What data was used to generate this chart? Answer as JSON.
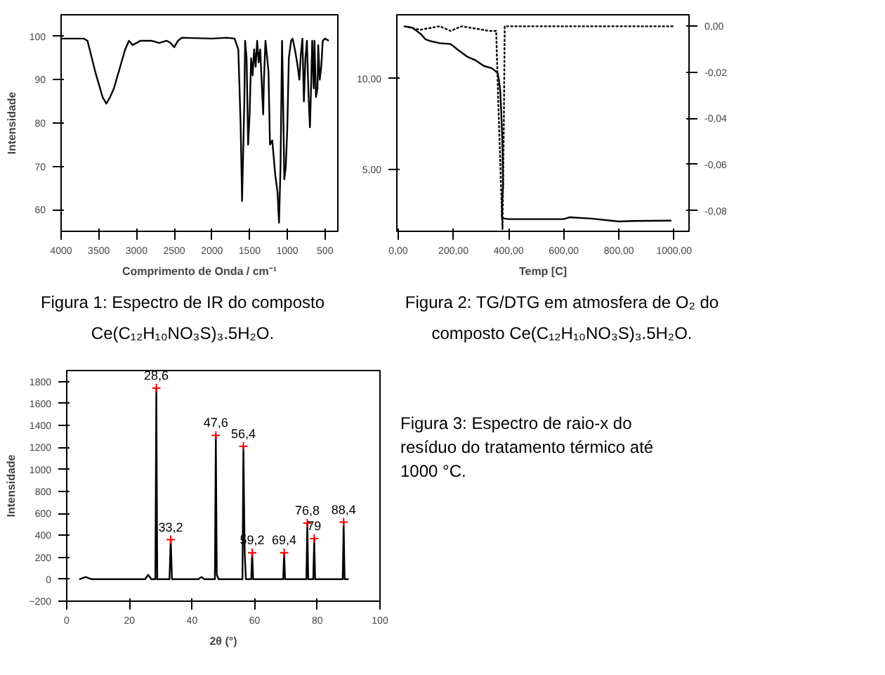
{
  "chart_data": [
    {
      "type": "line",
      "xlabel": "Comprimento de Onda / cm⁻¹",
      "ylabel": "Intensidade",
      "xlim": [
        4000,
        330
      ],
      "ylim": [
        55,
        105
      ],
      "xticks": [
        4000,
        3500,
        3000,
        2500,
        2000,
        1500,
        1000,
        500
      ],
      "yticks": [
        60,
        70,
        80,
        90,
        100
      ],
      "grid": false,
      "annotations": [
        "Figura 1: Espectro de IR do composto Ce(C₁₂H₁₀NO₃S)₃.5H₂O."
      ],
      "series": [
        {
          "color": "#000000",
          "x": [
            4000,
            3700,
            3650,
            3550,
            3450,
            3400,
            3350,
            3300,
            3250,
            3150,
            3100,
            3050,
            2950,
            2800,
            2700,
            2600,
            2550,
            2500,
            2450,
            2400,
            2000,
            1800,
            1700,
            1650,
            1620,
            1600,
            1590,
            1570,
            1560,
            1540,
            1520,
            1500,
            1480,
            1460,
            1440,
            1420,
            1400,
            1380,
            1360,
            1320,
            1310,
            1290,
            1250,
            1230,
            1200,
            1180,
            1160,
            1130,
            1110,
            1090,
            1070,
            1060,
            1040,
            1020,
            1000,
            980,
            950,
            930,
            900,
            870,
            840,
            820,
            800,
            780,
            760,
            740,
            720,
            700,
            690,
            670,
            650,
            640,
            620,
            600,
            590,
            570,
            550,
            530,
            500,
            450
          ],
          "values": [
            99.5,
            99.5,
            99,
            92,
            86,
            84.5,
            86,
            88,
            91,
            97,
            99,
            98,
            99,
            99,
            98.5,
            99,
            98.5,
            97.5,
            99,
            99.7,
            99.5,
            99.7,
            99.5,
            97,
            80,
            62,
            70,
            85,
            99,
            95,
            75,
            82,
            95,
            91,
            97,
            93,
            99,
            94,
            97,
            82,
            90,
            99,
            92,
            75,
            76,
            72,
            68,
            64,
            57,
            70,
            99,
            90,
            67,
            70,
            79,
            95,
            99,
            99.5,
            97,
            94,
            90,
            96,
            99.5,
            85,
            95,
            99,
            87,
            79,
            85,
            99,
            88,
            99,
            86,
            88,
            98,
            90,
            93,
            99,
            99.5,
            99
          ]
        }
      ]
    },
    {
      "type": "line",
      "xlabel": "Temp [C]",
      "xlim": [
        -5,
        1054
      ],
      "ylim": [
        1.6,
        13.5
      ],
      "y2lim": [
        -0.089,
        0.005
      ],
      "grid": false,
      "xticks": [
        {
          "value": 0,
          "label": "0,00"
        },
        {
          "value": 200,
          "label": "200,00"
        },
        {
          "value": 400,
          "label": "400,00"
        },
        {
          "value": 600,
          "label": "600,00"
        },
        {
          "value": 800,
          "label": "800,00"
        },
        {
          "value": 1000,
          "label": "1000,00"
        }
      ],
      "yticks": [
        {
          "value": 5,
          "label": "5,00"
        },
        {
          "value": 10,
          "label": "10,00"
        }
      ],
      "y2ticks": [
        {
          "value": 0,
          "label": "0,00"
        },
        {
          "value": -0.02,
          "label": "-0,02"
        },
        {
          "value": -0.04,
          "label": "-0,04"
        },
        {
          "value": -0.06,
          "label": "-0,06"
        },
        {
          "value": -0.08,
          "label": "-0,08"
        }
      ],
      "annotations": [
        "Figura 2: TG/DTG em atmosfera de O₂ do composto Ce(C₁₂H₁₀NO₃S)₃.5H₂O."
      ],
      "series": [
        {
          "color": "#000000",
          "line_style": "solid",
          "x": [
            25,
            50,
            80,
            100,
            120,
            150,
            190,
            220,
            250,
            280,
            310,
            340,
            360,
            365,
            370,
            373,
            377,
            380,
            376,
            376,
            400,
            600,
            620,
            700,
            800,
            850,
            990
          ],
          "values": [
            12.86,
            12.8,
            12.47,
            12.14,
            12.04,
            11.94,
            11.89,
            11.53,
            11.2,
            11.0,
            10.69,
            10.56,
            10.31,
            9.92,
            9.29,
            8.27,
            6.73,
            4.17,
            3.16,
            2.32,
            2.27,
            2.27,
            2.37,
            2.3,
            2.14,
            2.17,
            2.19
          ]
        },
        {
          "color": "#000000",
          "line_style": "dotted",
          "axis": "y2",
          "x": [
            20,
            80,
            150,
            190,
            230,
            330,
            355,
            362,
            370,
            378,
            383,
            386,
            1000
          ],
          "values": [
            0.0,
            -0.0015,
            0.0,
            -0.002,
            0.0,
            -0.002,
            -0.002,
            -0.03,
            -0.06,
            -0.088,
            -0.04,
            0.0,
            0.0
          ]
        }
      ]
    },
    {
      "type": "line",
      "xlabel": "2θ (°)",
      "ylabel": "Intensidade",
      "xlim": [
        0,
        100
      ],
      "ylim": [
        -200,
        1900
      ],
      "xticks": [
        0,
        20,
        40,
        60,
        80,
        100
      ],
      "yticks": [
        -200,
        0,
        200,
        400,
        600,
        800,
        1000,
        1200,
        1400,
        1600,
        1800
      ],
      "grid": false,
      "annotations": [
        {
          "text": "28,6",
          "x": 28.6,
          "y": 1740
        },
        {
          "text": "33,2",
          "x": 33.2,
          "y": 360
        },
        {
          "text": "47,6",
          "x": 47.6,
          "y": 1310
        },
        {
          "text": "56,4",
          "x": 56.4,
          "y": 1210
        },
        {
          "text": "59,2",
          "x": 59.2,
          "y": 240
        },
        {
          "text": "69,4",
          "x": 69.4,
          "y": 240
        },
        {
          "text": "76,8",
          "x": 76.8,
          "y": 510
        },
        {
          "text": "79",
          "x": 79,
          "y": 370
        },
        {
          "text": "88,4",
          "x": 88.4,
          "y": 520
        },
        "Figura 3: Espectro de raio-x do resíduo do tratamento térmico até 1000 °C."
      ],
      "series": [
        {
          "color": "#000000",
          "x": [
            4,
            6,
            8,
            20,
            25,
            26,
            27,
            28.3,
            28.6,
            28.9,
            32.8,
            33.2,
            33.6,
            42,
            43,
            44,
            47.3,
            47.6,
            47.9,
            48.5,
            56.1,
            56.4,
            56.8,
            57.2,
            58.9,
            59.2,
            59.5,
            69.1,
            69.4,
            69.7,
            76.5,
            76.8,
            77.1,
            78.7,
            79,
            79.3,
            88.1,
            88.4,
            88.7,
            90
          ],
          "values": [
            0,
            20,
            0,
            0,
            0,
            40,
            0,
            0,
            1740,
            0,
            0,
            360,
            0,
            0,
            20,
            0,
            0,
            1310,
            40,
            0,
            0,
            1210,
            250,
            0,
            0,
            240,
            0,
            0,
            240,
            0,
            0,
            510,
            0,
            0,
            370,
            0,
            0,
            520,
            0,
            0
          ]
        },
        {
          "type": "scatter",
          "marker": "cross",
          "color": "#ff0000",
          "x": [
            28.6,
            33.2,
            47.6,
            56.4,
            59.2,
            69.4,
            76.8,
            79,
            88.4
          ],
          "values": [
            1740,
            360,
            1310,
            1210,
            240,
            240,
            510,
            370,
            520
          ]
        }
      ]
    }
  ]
}
